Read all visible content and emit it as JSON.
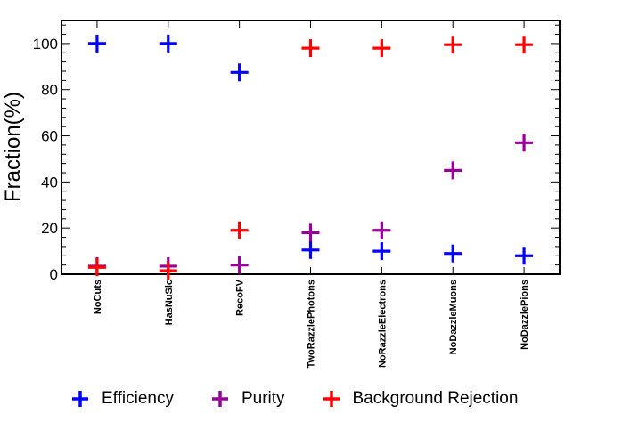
{
  "chart_data": {
    "type": "scatter",
    "title": "",
    "xlabel": "",
    "ylabel": "Fraction(%)",
    "ylim": [
      0,
      110
    ],
    "yticks": [
      0,
      20,
      40,
      60,
      80,
      100
    ],
    "categories": [
      "NoCuts",
      "HasNuSlc",
      "RecoFV",
      "TwoRazzlePhotons",
      "NoRazzleElectrons",
      "NoDazzleMuons",
      "NoDazzlePions"
    ],
    "series": [
      {
        "name": "Efficiency",
        "color": "#0000ff",
        "values": [
          100,
          100,
          87.5,
          10.5,
          10,
          9,
          8
        ]
      },
      {
        "name": "Purity",
        "color": "#990099",
        "values": [
          3.5,
          3.5,
          4,
          18,
          19,
          45,
          57
        ]
      },
      {
        "name": "Background Rejection",
        "color": "#ff0000",
        "values": [
          3,
          1.5,
          19,
          98,
          98,
          99.5,
          99.5
        ]
      }
    ]
  }
}
